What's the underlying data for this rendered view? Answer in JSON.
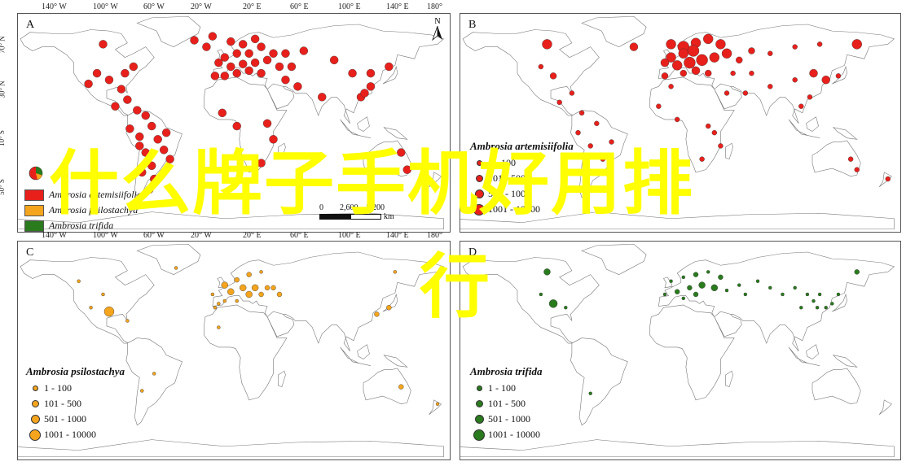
{
  "overlay": {
    "line1": "什么牌子手机好用排",
    "line2": "行",
    "color": "#ffff00"
  },
  "longitude_ticks": [
    "140° W",
    "100° W",
    "60° W",
    "20° W",
    "20° E",
    "60° E",
    "100° E",
    "140° E",
    "180°"
  ],
  "latitude_ticks": [
    "70° N",
    "30° N",
    "10° S",
    "50° S"
  ],
  "north_arrow": {
    "label": "N"
  },
  "scale_bar": {
    "labels": [
      "0",
      "2,600",
      "5,200"
    ],
    "unit": "km"
  },
  "panels": [
    {
      "letter": "A",
      "legend": {
        "items": [
          {
            "label": "Ambrosia artemisiifolia",
            "color": "#e8201c"
          },
          {
            "label": "Ambrosia psilostachya",
            "color": "#f4a41d"
          },
          {
            "label": "Ambrosia trifida",
            "color": "#2a7a1e"
          }
        ]
      }
    },
    {
      "letter": "B",
      "legend": {
        "title": "Ambrosia artemisiifolia",
        "color": "#e8201c",
        "classes": [
          "1 - 100",
          "101 - 500",
          "501 - 1000",
          "1001 - 10000"
        ]
      }
    },
    {
      "letter": "C",
      "legend": {
        "title": "Ambrosia psilostachya",
        "color": "#f4a41d",
        "classes": [
          "1 - 100",
          "101 - 500",
          "501 - 1000",
          "1001 - 10000"
        ]
      }
    },
    {
      "letter": "D",
      "legend": {
        "title": "Ambrosia trifida",
        "color": "#2a7a1e",
        "classes": [
          "1 - 100",
          "101 - 500",
          "501 - 1000",
          "1001 - 10000"
        ]
      }
    }
  ],
  "map_data": {
    "A": [
      [
        -100,
        62,
        2
      ],
      [
        -75,
        45,
        2
      ],
      [
        -95,
        35,
        2
      ],
      [
        -105,
        40,
        2
      ],
      [
        -80,
        20,
        2
      ],
      [
        -72,
        12,
        2
      ],
      [
        -65,
        8,
        2
      ],
      [
        -60,
        0,
        2
      ],
      [
        -78,
        -2,
        2
      ],
      [
        -70,
        -8,
        2
      ],
      [
        -55,
        -10,
        2
      ],
      [
        -50,
        -18,
        2
      ],
      [
        -65,
        -20,
        2
      ],
      [
        -60,
        -30,
        2
      ],
      [
        -68,
        -35,
        2
      ],
      [
        -58,
        -40,
        2
      ],
      [
        -70,
        -15,
        2
      ],
      [
        -48,
        -5,
        2
      ],
      [
        -45,
        -25,
        2
      ],
      [
        -62,
        -48,
        2
      ],
      [
        -90,
        15,
        2
      ],
      [
        -85,
        28,
        2
      ],
      [
        -10,
        68,
        2
      ],
      [
        5,
        64,
        2
      ],
      [
        15,
        62,
        2
      ],
      [
        25,
        66,
        2
      ],
      [
        30,
        60,
        2
      ],
      [
        20,
        55,
        2
      ],
      [
        10,
        55,
        2
      ],
      [
        0,
        52,
        2
      ],
      [
        -5,
        48,
        2
      ],
      [
        5,
        45,
        2
      ],
      [
        15,
        47,
        2
      ],
      [
        25,
        48,
        2
      ],
      [
        35,
        50,
        2
      ],
      [
        40,
        55,
        2
      ],
      [
        50,
        55,
        2
      ],
      [
        45,
        45,
        2
      ],
      [
        20,
        42,
        2
      ],
      [
        10,
        40,
        2
      ],
      [
        0,
        38,
        2
      ],
      [
        -8,
        38,
        2
      ],
      [
        30,
        40,
        2
      ],
      [
        55,
        45,
        2
      ],
      [
        65,
        57,
        2
      ],
      [
        90,
        50,
        2
      ],
      [
        105,
        40,
        2
      ],
      [
        120,
        40,
        2
      ],
      [
        135,
        45,
        2
      ],
      [
        112,
        22,
        2
      ],
      [
        80,
        22,
        2
      ],
      [
        -2,
        10,
        2
      ],
      [
        10,
        0,
        2
      ],
      [
        35,
        2,
        2
      ],
      [
        40,
        -10,
        2
      ],
      [
        30,
        -28,
        2
      ],
      [
        145,
        -20,
        2
      ],
      [
        150,
        -33,
        2
      ],
      [
        60,
        30,
        2
      ],
      [
        50,
        35,
        2
      ],
      [
        120,
        30,
        2
      ],
      [
        -15,
        60,
        2
      ],
      [
        -25,
        65,
        2
      ],
      [
        115,
        25,
        2
      ],
      [
        -82,
        40,
        2
      ],
      [
        -112,
        32,
        2
      ]
    ],
    "B": [
      [
        -100,
        62,
        6
      ],
      [
        -95,
        38,
        4
      ],
      [
        -105,
        45,
        3
      ],
      [
        -80,
        25,
        3
      ],
      [
        -90,
        18,
        3
      ],
      [
        -72,
        10,
        3
      ],
      [
        -60,
        2,
        3
      ],
      [
        -75,
        -5,
        3
      ],
      [
        -65,
        -15,
        3
      ],
      [
        -55,
        -25,
        3
      ],
      [
        -62,
        -35,
        3
      ],
      [
        -70,
        -42,
        2
      ],
      [
        -48,
        -12,
        3
      ],
      [
        -30,
        60,
        5
      ],
      [
        0,
        62,
        6
      ],
      [
        10,
        60,
        7
      ],
      [
        20,
        63,
        6
      ],
      [
        30,
        66,
        6
      ],
      [
        40,
        62,
        6
      ],
      [
        18,
        57,
        7
      ],
      [
        10,
        55,
        6
      ],
      [
        0,
        52,
        6
      ],
      [
        -5,
        48,
        5
      ],
      [
        5,
        46,
        6
      ],
      [
        15,
        48,
        7
      ],
      [
        25,
        50,
        7
      ],
      [
        35,
        52,
        6
      ],
      [
        45,
        55,
        6
      ],
      [
        55,
        50,
        4
      ],
      [
        65,
        57,
        4
      ],
      [
        80,
        55,
        3
      ],
      [
        100,
        60,
        3
      ],
      [
        120,
        62,
        3
      ],
      [
        150,
        62,
        6
      ],
      [
        20,
        42,
        5
      ],
      [
        10,
        40,
        4
      ],
      [
        -5,
        38,
        4
      ],
      [
        30,
        40,
        4
      ],
      [
        50,
        40,
        3
      ],
      [
        65,
        40,
        3
      ],
      [
        80,
        30,
        3
      ],
      [
        100,
        35,
        3
      ],
      [
        115,
        40,
        5
      ],
      [
        125,
        35,
        5
      ],
      [
        135,
        38,
        3
      ],
      [
        112,
        22,
        3
      ],
      [
        105,
        15,
        3
      ],
      [
        30,
        0,
        3
      ],
      [
        -10,
        15,
        3
      ],
      [
        5,
        5,
        3
      ],
      [
        35,
        -5,
        3
      ],
      [
        40,
        -15,
        3
      ],
      [
        25,
        -25,
        3
      ],
      [
        145,
        -25,
        3
      ],
      [
        150,
        -33,
        3
      ],
      [
        175,
        -40,
        3
      ],
      [
        60,
        25,
        3
      ],
      [
        45,
        25,
        3
      ],
      [
        0,
        30,
        3
      ]
    ],
    "C": [
      [
        -120,
        55,
        2
      ],
      [
        -100,
        45,
        2
      ],
      [
        -95,
        32,
        6
      ],
      [
        -110,
        35,
        2
      ],
      [
        -80,
        25,
        2
      ],
      [
        -40,
        65,
        2
      ],
      [
        0,
        52,
        4
      ],
      [
        10,
        56,
        3
      ],
      [
        20,
        60,
        3
      ],
      [
        30,
        62,
        2
      ],
      [
        15,
        50,
        4
      ],
      [
        25,
        50,
        4
      ],
      [
        35,
        50,
        3
      ],
      [
        5,
        47,
        4
      ],
      [
        20,
        45,
        4
      ],
      [
        30,
        45,
        3
      ],
      [
        10,
        40,
        2
      ],
      [
        0,
        40,
        2
      ],
      [
        -5,
        38,
        2
      ],
      [
        45,
        45,
        3
      ],
      [
        -10,
        45,
        2
      ],
      [
        40,
        50,
        3
      ],
      [
        -5,
        20,
        2
      ],
      [
        125,
        30,
        3
      ],
      [
        135,
        35,
        3
      ],
      [
        140,
        62,
        2
      ],
      [
        -68,
        -28,
        2
      ],
      [
        -58,
        -15,
        2
      ],
      [
        145,
        -25,
        3
      ],
      [
        175,
        -38,
        2
      ],
      [
        -8,
        35,
        2
      ]
    ],
    "D": [
      [
        -100,
        62,
        4
      ],
      [
        -95,
        38,
        5
      ],
      [
        -105,
        45,
        2
      ],
      [
        -85,
        35,
        2
      ],
      [
        0,
        55,
        2
      ],
      [
        10,
        58,
        2
      ],
      [
        20,
        60,
        3
      ],
      [
        30,
        62,
        2
      ],
      [
        40,
        58,
        3
      ],
      [
        15,
        50,
        3
      ],
      [
        25,
        52,
        4
      ],
      [
        35,
        50,
        4
      ],
      [
        45,
        48,
        2
      ],
      [
        5,
        47,
        3
      ],
      [
        20,
        45,
        3
      ],
      [
        55,
        52,
        2
      ],
      [
        10,
        42,
        2
      ],
      [
        115,
        40,
        2
      ],
      [
        125,
        35,
        2
      ],
      [
        130,
        38,
        2
      ],
      [
        135,
        45,
        2
      ],
      [
        150,
        62,
        3
      ],
      [
        80,
        50,
        2
      ],
      [
        90,
        45,
        2
      ],
      [
        100,
        50,
        2
      ],
      [
        110,
        45,
        2
      ],
      [
        120,
        45,
        2
      ],
      [
        -5,
        45,
        2
      ],
      [
        60,
        45,
        2
      ],
      [
        70,
        55,
        2
      ],
      [
        118,
        35,
        2
      ],
      [
        105,
        35,
        2
      ],
      [
        -65,
        -30,
        2
      ]
    ]
  }
}
